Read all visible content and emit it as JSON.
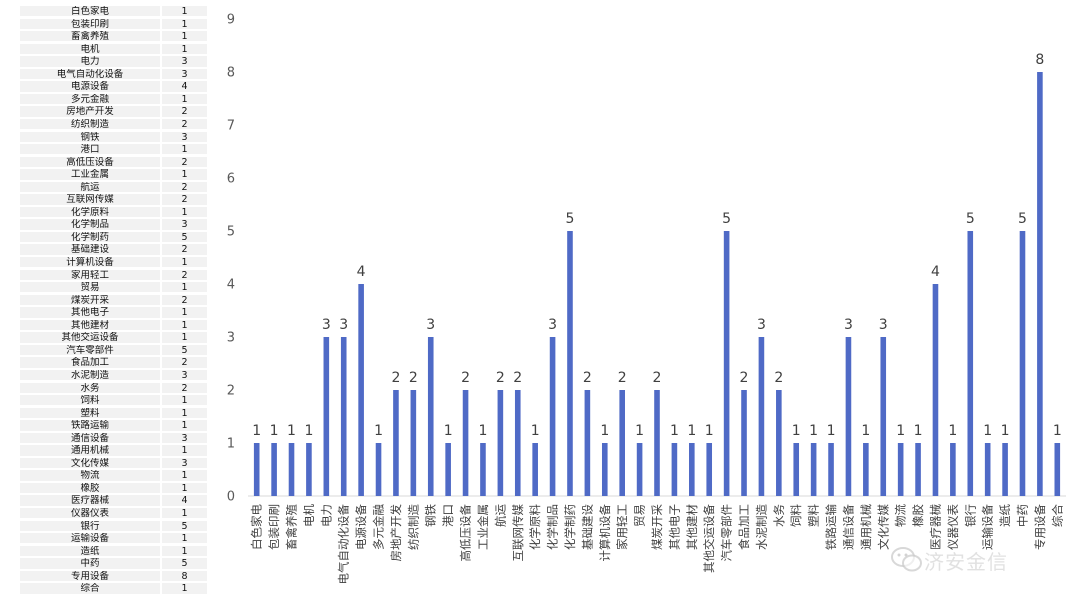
{
  "table": {
    "rows": [
      [
        "白色家电",
        1
      ],
      [
        "包装印刷",
        1
      ],
      [
        "畜禽养殖",
        1
      ],
      [
        "电机",
        1
      ],
      [
        "电力",
        3
      ],
      [
        "电气自动化设备",
        3
      ],
      [
        "电源设备",
        4
      ],
      [
        "多元金融",
        1
      ],
      [
        "房地产开发",
        2
      ],
      [
        "纺织制造",
        2
      ],
      [
        "钢铁",
        3
      ],
      [
        "港口",
        1
      ],
      [
        "高低压设备",
        2
      ],
      [
        "工业金属",
        1
      ],
      [
        "航运",
        2
      ],
      [
        "互联网传媒",
        2
      ],
      [
        "化学原料",
        1
      ],
      [
        "化学制品",
        3
      ],
      [
        "化学制药",
        5
      ],
      [
        "基础建设",
        2
      ],
      [
        "计算机设备",
        1
      ],
      [
        "家用轻工",
        2
      ],
      [
        "贸易",
        1
      ],
      [
        "煤炭开采",
        2
      ],
      [
        "其他电子",
        1
      ],
      [
        "其他建材",
        1
      ],
      [
        "其他交运设备",
        1
      ],
      [
        "汽车零部件",
        5
      ],
      [
        "食品加工",
        2
      ],
      [
        "水泥制造",
        3
      ],
      [
        "水务",
        2
      ],
      [
        "饲料",
        1
      ],
      [
        "塑料",
        1
      ],
      [
        "铁路运输",
        1
      ],
      [
        "通信设备",
        3
      ],
      [
        "通用机械",
        1
      ],
      [
        "文化传媒",
        3
      ],
      [
        "物流",
        1
      ],
      [
        "橡胶",
        1
      ],
      [
        "医疗器械",
        4
      ],
      [
        "仪器仪表",
        1
      ],
      [
        "银行",
        5
      ],
      [
        "运输设备",
        1
      ],
      [
        "造纸",
        1
      ],
      [
        "中药",
        5
      ],
      [
        "专用设备",
        8
      ],
      [
        "综合",
        1
      ]
    ]
  },
  "chart_data": {
    "type": "bar",
    "categories": [
      "白色家电",
      "包装印刷",
      "畜禽养殖",
      "电机",
      "电力",
      "电气自动化设备",
      "电源设备",
      "多元金融",
      "房地产开发",
      "纺织制造",
      "钢铁",
      "港口",
      "高低压设备",
      "工业金属",
      "航运",
      "互联网传媒",
      "化学原料",
      "化学制品",
      "化学制药",
      "基础建设",
      "计算机设备",
      "家用轻工",
      "贸易",
      "煤炭开采",
      "其他电子",
      "其他建材",
      "其他交运设备",
      "汽车零部件",
      "食品加工",
      "水泥制造",
      "水务",
      "饲料",
      "塑料",
      "铁路运输",
      "通信设备",
      "通用机械",
      "文化传媒",
      "物流",
      "橡胶",
      "医疗器械",
      "仪器仪表",
      "银行",
      "运输设备",
      "造纸",
      "中药",
      "专用设备",
      "综合"
    ],
    "values": [
      1,
      1,
      1,
      1,
      3,
      3,
      4,
      1,
      2,
      2,
      3,
      1,
      2,
      1,
      2,
      2,
      1,
      3,
      5,
      2,
      1,
      2,
      1,
      2,
      1,
      1,
      1,
      5,
      2,
      3,
      2,
      1,
      1,
      1,
      3,
      1,
      3,
      1,
      1,
      4,
      1,
      5,
      1,
      1,
      5,
      8,
      1
    ],
    "yticks": [
      0,
      1,
      2,
      3,
      4,
      5,
      6,
      7,
      8,
      9
    ],
    "ylim": [
      0,
      9
    ],
    "grid": false,
    "bar_color": "#4f6ac6",
    "data_labels": true
  },
  "watermark": {
    "text": "济安金信",
    "icon": "wechat-icon"
  }
}
